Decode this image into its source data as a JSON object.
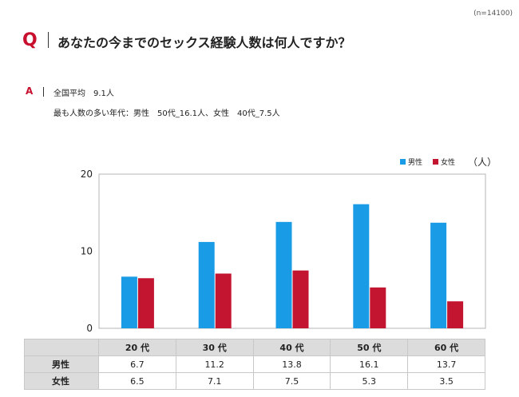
{
  "sample_size": "(n=14100)",
  "question": {
    "mark": "Q",
    "text": "あなたの今までのセックス経験人数は何人ですか？"
  },
  "answer": {
    "mark": "A",
    "line1": "全国平均　9.1人",
    "line2": "最も人数の多い年代：男性　50代_16.1人、女性　40代_7.5人"
  },
  "unit": "（人）",
  "colors": {
    "male": "#1a9be6",
    "female": "#c3152f",
    "accent": "#c8102e"
  },
  "chart_data": {
    "type": "bar",
    "categories": [
      "20代",
      "30代",
      "40代",
      "50代",
      "60代"
    ],
    "series": [
      {
        "name": "男性",
        "values": [
          6.7,
          11.2,
          13.8,
          16.1,
          13.7
        ]
      },
      {
        "name": "女性",
        "values": [
          6.5,
          7.1,
          7.5,
          5.3,
          3.5
        ]
      }
    ],
    "ylim": [
      0,
      20
    ],
    "yticks": [
      "0",
      "10",
      "20"
    ],
    "legend": "top-right",
    "grid": false
  },
  "table": {
    "headers": [
      "20 代",
      "30 代",
      "40 代",
      "50 代",
      "60 代"
    ],
    "rows": [
      {
        "label": "男性",
        "values": [
          "6.7",
          "11.2",
          "13.8",
          "16.1",
          "13.7"
        ]
      },
      {
        "label": "女性",
        "values": [
          "6.5",
          "7.1",
          "7.5",
          "5.3",
          "3.5"
        ]
      }
    ]
  }
}
